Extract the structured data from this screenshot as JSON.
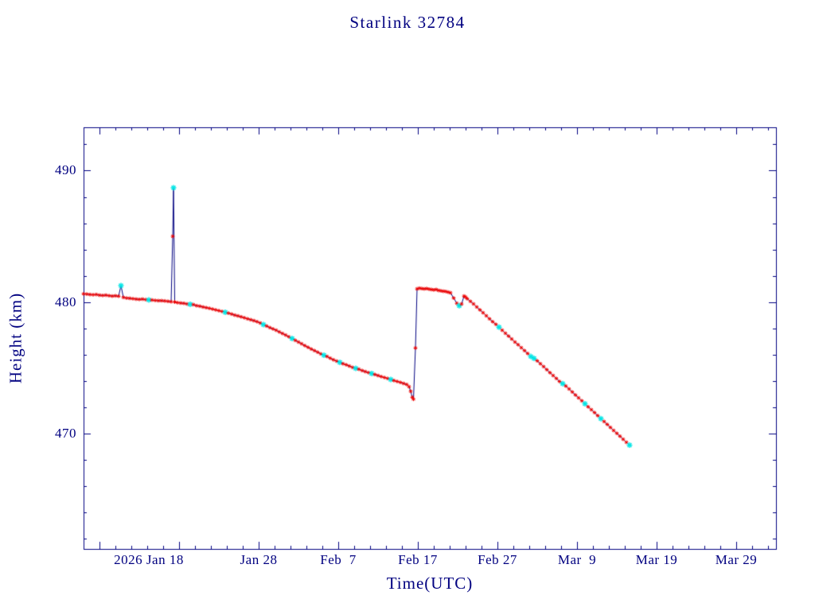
{
  "chart_data": {
    "type": "line",
    "title": "Starlink 32784",
    "xlabel": "Time(UTC)",
    "ylabel": "Height (km)",
    "x_origin": "2026-01-06",
    "x_unit": "days",
    "xlim": [
      0,
      87
    ],
    "ylim": [
      461.2,
      493.3
    ],
    "grid": false,
    "legend": "none",
    "x_ticks": [
      {
        "t": 12,
        "label": "2026 Jan 18",
        "dx": -38
      },
      {
        "t": 22,
        "label": "Jan 28",
        "dx": 0
      },
      {
        "t": 32,
        "label": "Feb  7",
        "dx": 0
      },
      {
        "t": 42,
        "label": "Feb 17",
        "dx": 0
      },
      {
        "t": 52,
        "label": "Feb 27",
        "dx": 0
      },
      {
        "t": 62,
        "label": "Mar  9",
        "dx": 0
      },
      {
        "t": 72,
        "label": "Mar 19",
        "dx": 0
      },
      {
        "t": 82,
        "label": "Mar 29",
        "dx": 0
      }
    ],
    "y_ticks": [
      470,
      480,
      490
    ],
    "minor_tick_x_days": 2,
    "minor_tick_y_km": 2,
    "colors": {
      "axis": "#000080",
      "text": "#000080",
      "line": "#000080",
      "marker": "#ee0000",
      "marker_alt": "#00e5e5",
      "background": "#ffffff"
    },
    "series": [
      {
        "name": "height",
        "marker": "asterisk",
        "points": [
          [
            0.0,
            480.62
          ],
          [
            0.4,
            480.6
          ],
          [
            0.8,
            480.57
          ],
          [
            1.2,
            480.55
          ],
          [
            1.6,
            480.57
          ],
          [
            2.0,
            480.52
          ],
          [
            2.4,
            480.5
          ],
          [
            2.8,
            480.52
          ],
          [
            3.2,
            480.48
          ],
          [
            3.6,
            480.45
          ],
          [
            4.0,
            480.47
          ],
          [
            4.4,
            480.44
          ],
          [
            4.7,
            481.25
          ],
          [
            5.0,
            480.35
          ],
          [
            5.4,
            480.3
          ],
          [
            5.8,
            480.28
          ],
          [
            6.2,
            480.25
          ],
          [
            6.6,
            480.22
          ],
          [
            7.0,
            480.2
          ],
          [
            7.4,
            480.22
          ],
          [
            7.8,
            480.18
          ],
          [
            8.2,
            480.16
          ],
          [
            8.6,
            480.15
          ],
          [
            9.0,
            480.12
          ],
          [
            9.4,
            480.1
          ],
          [
            9.8,
            480.1
          ],
          [
            10.2,
            480.08
          ],
          [
            10.6,
            480.05
          ],
          [
            11.0,
            480.02
          ],
          [
            11.2,
            485.0
          ],
          [
            11.3,
            488.7
          ],
          [
            11.45,
            480.0
          ],
          [
            11.8,
            479.95
          ],
          [
            12.2,
            479.92
          ],
          [
            12.6,
            479.9
          ],
          [
            13.0,
            479.85
          ],
          [
            13.4,
            479.82
          ],
          [
            13.8,
            479.8
          ],
          [
            14.2,
            479.72
          ],
          [
            14.6,
            479.68
          ],
          [
            15.0,
            479.62
          ],
          [
            15.4,
            479.57
          ],
          [
            15.8,
            479.52
          ],
          [
            16.2,
            479.46
          ],
          [
            16.6,
            479.4
          ],
          [
            17.0,
            479.34
          ],
          [
            17.4,
            479.28
          ],
          [
            17.8,
            479.22
          ],
          [
            18.2,
            479.15
          ],
          [
            18.6,
            479.08
          ],
          [
            19.0,
            479.0
          ],
          [
            19.4,
            478.94
          ],
          [
            19.8,
            478.87
          ],
          [
            20.2,
            478.8
          ],
          [
            20.6,
            478.72
          ],
          [
            21.0,
            478.65
          ],
          [
            21.4,
            478.58
          ],
          [
            21.8,
            478.5
          ],
          [
            22.2,
            478.4
          ],
          [
            22.6,
            478.28
          ],
          [
            23.0,
            478.17
          ],
          [
            23.4,
            478.05
          ],
          [
            23.8,
            477.95
          ],
          [
            24.2,
            477.85
          ],
          [
            24.6,
            477.72
          ],
          [
            25.0,
            477.6
          ],
          [
            25.4,
            477.48
          ],
          [
            25.8,
            477.35
          ],
          [
            26.2,
            477.22
          ],
          [
            26.6,
            477.08
          ],
          [
            27.0,
            476.95
          ],
          [
            27.4,
            476.82
          ],
          [
            27.8,
            476.68
          ],
          [
            28.2,
            476.55
          ],
          [
            28.6,
            476.42
          ],
          [
            29.0,
            476.3
          ],
          [
            29.4,
            476.18
          ],
          [
            29.8,
            476.05
          ],
          [
            30.2,
            475.95
          ],
          [
            30.6,
            475.85
          ],
          [
            31.0,
            475.72
          ],
          [
            31.4,
            475.6
          ],
          [
            31.8,
            475.5
          ],
          [
            32.2,
            475.4
          ],
          [
            32.6,
            475.3
          ],
          [
            33.0,
            475.22
          ],
          [
            33.4,
            475.12
          ],
          [
            33.8,
            475.02
          ],
          [
            34.2,
            474.95
          ],
          [
            34.6,
            474.88
          ],
          [
            35.0,
            474.78
          ],
          [
            35.4,
            474.7
          ],
          [
            35.8,
            474.62
          ],
          [
            36.2,
            474.55
          ],
          [
            36.6,
            474.48
          ],
          [
            37.0,
            474.4
          ],
          [
            37.4,
            474.32
          ],
          [
            37.8,
            474.25
          ],
          [
            38.2,
            474.18
          ],
          [
            38.6,
            474.1
          ],
          [
            39.0,
            474.02
          ],
          [
            39.4,
            473.95
          ],
          [
            39.8,
            473.88
          ],
          [
            40.2,
            473.8
          ],
          [
            40.6,
            473.72
          ],
          [
            40.9,
            473.55
          ],
          [
            41.1,
            473.2
          ],
          [
            41.3,
            472.75
          ],
          [
            41.45,
            472.6
          ],
          [
            41.7,
            476.5
          ],
          [
            41.9,
            481.0
          ],
          [
            42.2,
            481.05
          ],
          [
            42.5,
            481.02
          ],
          [
            42.8,
            481.0
          ],
          [
            43.1,
            481.02
          ],
          [
            43.4,
            480.98
          ],
          [
            43.7,
            480.95
          ],
          [
            44.0,
            480.92
          ],
          [
            44.3,
            480.95
          ],
          [
            44.6,
            480.88
          ],
          [
            44.9,
            480.85
          ],
          [
            45.2,
            480.82
          ],
          [
            45.5,
            480.8
          ],
          [
            45.8,
            480.75
          ],
          [
            46.1,
            480.7
          ],
          [
            46.5,
            480.3
          ],
          [
            46.9,
            479.9
          ],
          [
            47.2,
            479.72
          ],
          [
            47.5,
            479.85
          ],
          [
            47.8,
            480.45
          ],
          [
            48.0,
            480.38
          ],
          [
            48.2,
            480.25
          ],
          [
            48.6,
            480.05
          ],
          [
            49.0,
            479.85
          ],
          [
            49.4,
            479.62
          ],
          [
            49.8,
            479.4
          ],
          [
            50.2,
            479.18
          ],
          [
            50.6,
            478.95
          ],
          [
            51.0,
            478.72
          ],
          [
            51.4,
            478.5
          ],
          [
            51.8,
            478.3
          ],
          [
            52.2,
            478.08
          ],
          [
            52.6,
            477.85
          ],
          [
            53.0,
            477.62
          ],
          [
            53.4,
            477.4
          ],
          [
            53.8,
            477.18
          ],
          [
            54.2,
            476.95
          ],
          [
            54.6,
            476.75
          ],
          [
            55.0,
            476.52
          ],
          [
            55.4,
            476.3
          ],
          [
            55.8,
            476.08
          ],
          [
            56.2,
            475.85
          ],
          [
            56.6,
            475.7
          ],
          [
            57.0,
            475.52
          ],
          [
            57.4,
            475.3
          ],
          [
            57.8,
            475.08
          ],
          [
            58.2,
            474.85
          ],
          [
            58.6,
            474.62
          ],
          [
            59.0,
            474.4
          ],
          [
            59.4,
            474.18
          ],
          [
            59.8,
            473.95
          ],
          [
            60.2,
            473.78
          ],
          [
            60.6,
            473.6
          ],
          [
            61.0,
            473.38
          ],
          [
            61.4,
            473.15
          ],
          [
            61.8,
            472.92
          ],
          [
            62.2,
            472.7
          ],
          [
            62.6,
            472.48
          ],
          [
            63.0,
            472.25
          ],
          [
            63.4,
            472.02
          ],
          [
            63.8,
            471.8
          ],
          [
            64.2,
            471.58
          ],
          [
            64.6,
            471.35
          ],
          [
            65.0,
            471.12
          ],
          [
            65.4,
            470.9
          ],
          [
            65.8,
            470.68
          ],
          [
            66.2,
            470.45
          ],
          [
            66.6,
            470.22
          ],
          [
            67.0,
            470.0
          ],
          [
            67.4,
            469.78
          ],
          [
            67.8,
            469.55
          ],
          [
            68.2,
            469.32
          ],
          [
            68.6,
            469.1
          ]
        ],
        "cyan_indices": [
          12,
          21,
          30,
          36,
          47,
          59,
          68,
          78,
          83,
          88,
          93,
          99,
          127,
          141,
          151,
          152,
          161,
          168,
          173,
          182
        ]
      }
    ]
  }
}
